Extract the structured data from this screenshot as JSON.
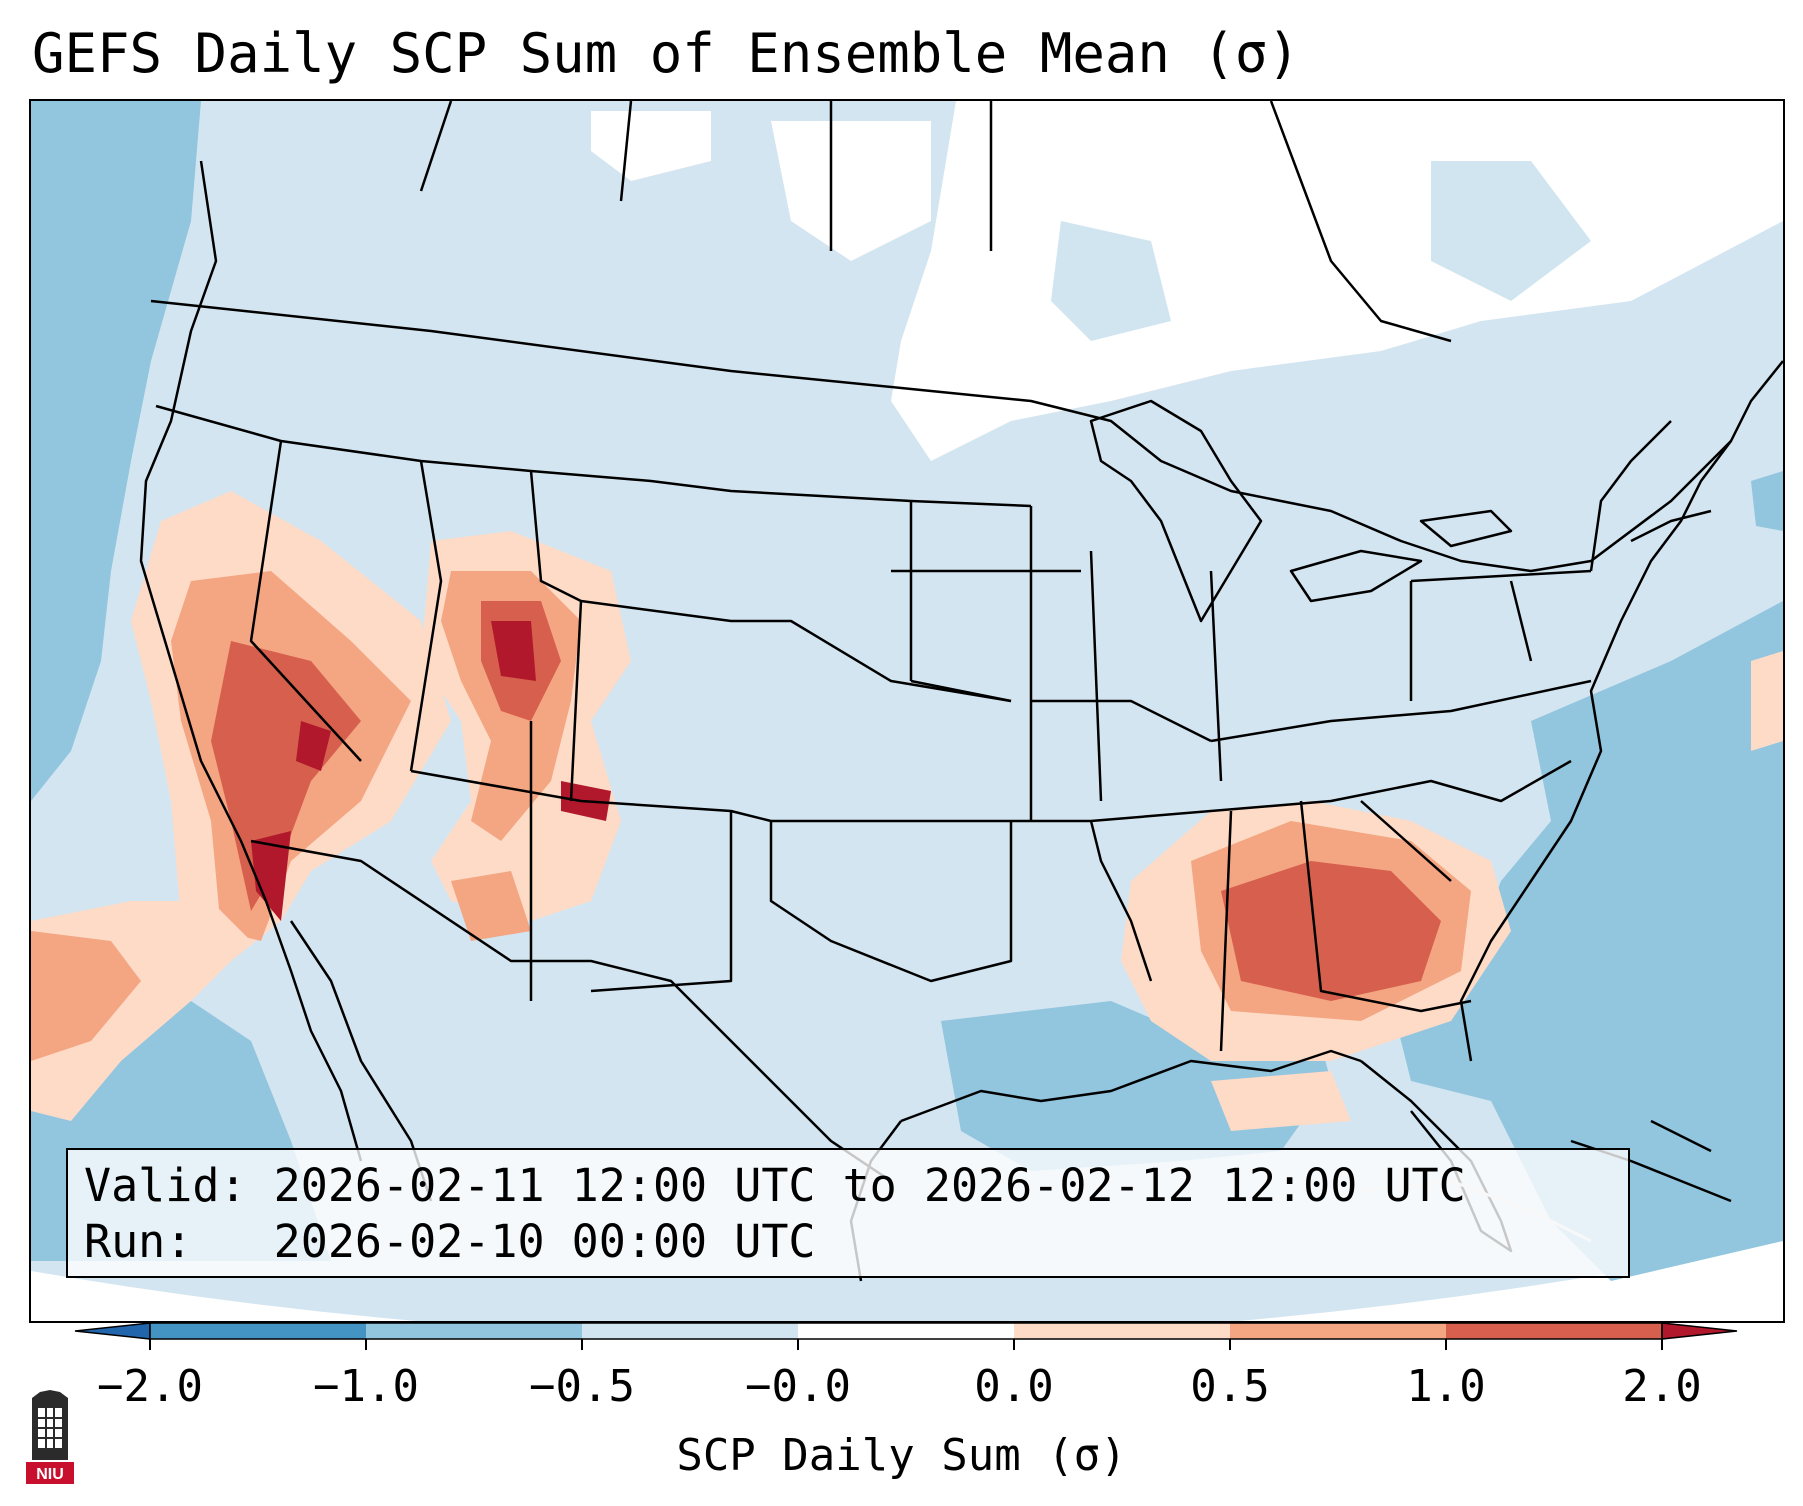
{
  "title": "GEFS Daily SCP Sum of Ensemble Mean (σ)",
  "info": {
    "valid_label": "Valid:",
    "valid_value": "2026-02-11 12:00 UTC to 2026-02-12 12:00 UTC",
    "run_label": "Run:",
    "run_value": "2026-02-10 00:00 UTC"
  },
  "colorbar": {
    "label": "SCP Daily Sum (σ)",
    "ticks": [
      "−2.0",
      "−1.0",
      "−0.5",
      "−0.0",
      "0.0",
      "0.5",
      "1.0",
      "2.0"
    ],
    "colors": [
      "#4393c3",
      "#92c5de",
      "#d1e5f0",
      "#ffffff",
      "#fddbc7",
      "#f4a582",
      "#d6604d"
    ],
    "extend_low_color": "#2166ac",
    "extend_high_color": "#b2182b"
  },
  "map": {
    "projection": "Lambert Conformal, CONUS",
    "field": "GEFS ensemble-mean daily SCP sum (standardized anomaly)",
    "color_ocean_deep": "#92c5de",
    "color_land_near_zero": "#d1e5f0",
    "color_positive_low": "#fddbc7",
    "color_positive_mid": "#f4a582",
    "color_positive_high": "#d6604d",
    "color_positive_max": "#b2182b"
  },
  "logo": {
    "text": "NIU",
    "icon": "university-tower-icon",
    "color": "#c8102e"
  }
}
